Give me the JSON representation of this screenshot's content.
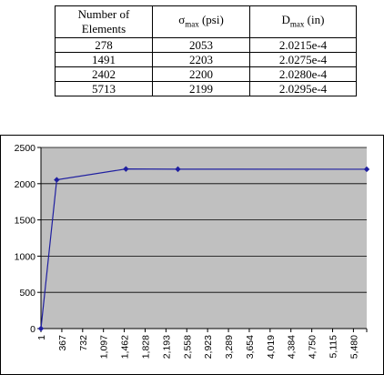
{
  "table": {
    "headers": {
      "col1": "Number of Elements",
      "col2_symbol": "σ",
      "col2_sub": "max",
      "col2_unit": " (psi)",
      "col3_symbol": "D",
      "col3_sub": "max",
      "col3_unit": " (in)"
    },
    "rows": [
      {
        "elements": "278",
        "sigma": "2053",
        "dmax": "2.0215e-4"
      },
      {
        "elements": "1491",
        "sigma": "2203",
        "dmax": "2.0275e-4"
      },
      {
        "elements": "2402",
        "sigma": "2200",
        "dmax": "2.0280e-4"
      },
      {
        "elements": "5713",
        "sigma": "2199",
        "dmax": "2.0295e-4"
      }
    ]
  },
  "colors": {
    "plot_background": "#c0c0c0",
    "line": "#1f1fa0",
    "grid": "#000000"
  },
  "chart_data": {
    "type": "line",
    "title": "",
    "xlabel": "",
    "ylabel": "",
    "x": [
      1,
      278,
      1491,
      2402,
      5713
    ],
    "series": [
      {
        "values": [
          0,
          2053,
          2203,
          2200,
          2199
        ]
      }
    ],
    "xlim": [
      1,
      5713
    ],
    "ylim": [
      0,
      2500
    ],
    "yticks": [
      0,
      500,
      1000,
      1500,
      2000,
      2500
    ],
    "xtick_labels": [
      "1",
      "367",
      "732",
      "1,097",
      "1,462",
      "1,828",
      "2,193",
      "2,558",
      "2,923",
      "3,289",
      "3,654",
      "4,019",
      "4,384",
      "4,750",
      "5,115",
      "5,480"
    ],
    "grid": true
  }
}
